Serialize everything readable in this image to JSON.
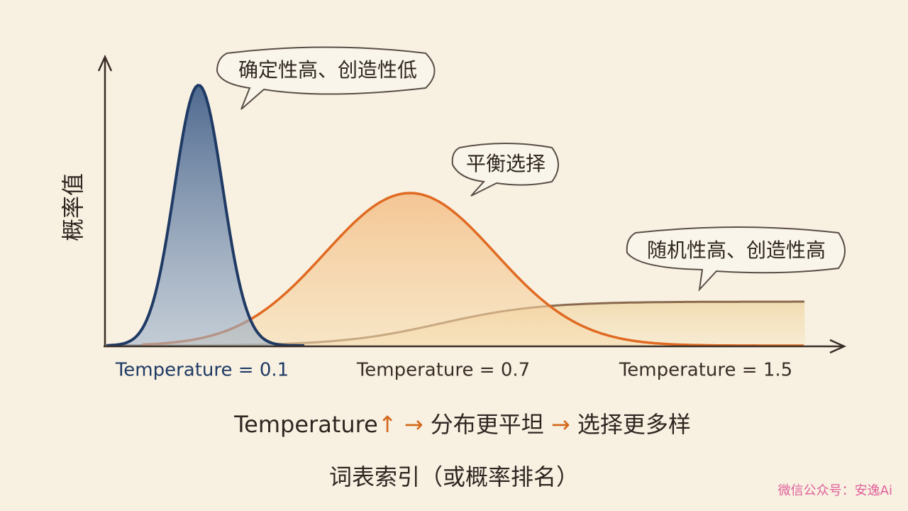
{
  "axes": {
    "y_label": "概率值",
    "x_label": "词表索引（或概率排名）"
  },
  "curves": [
    {
      "label": "Temperature = 0.1",
      "callout": "确定性高、创造性低"
    },
    {
      "label": "Temperature = 0.7",
      "callout": "平衡选择"
    },
    {
      "label": "Temperature = 1.5",
      "callout": "随机性高、创造性高"
    }
  ],
  "summary": {
    "parts": [
      "Temperature",
      "↑",
      "→",
      "分布更平坦",
      "→",
      "选择更多样"
    ]
  },
  "watermark": "微信公众号：安逸Ai"
}
